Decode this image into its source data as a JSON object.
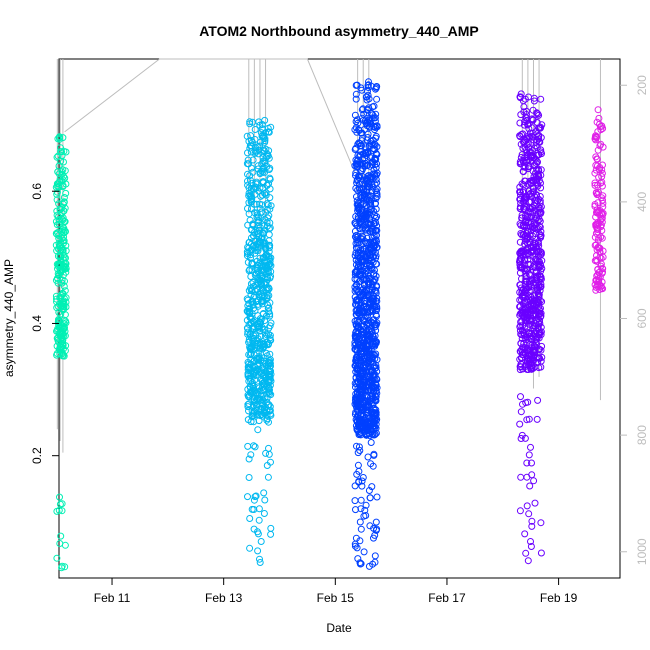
{
  "chart_data": {
    "type": "scatter",
    "title": "ATOM2 Northbound asymmetry_440_AMP",
    "xlabel": "Date",
    "ylabel": "asymmetry_440_AMP",
    "x_range_days": [
      10.05,
      20.1
    ],
    "ylim": [
      0.015,
      0.8
    ],
    "x_ticks": [
      {
        "label": "Feb 11",
        "day": 11
      },
      {
        "label": "Feb 13",
        "day": 13
      },
      {
        "label": "Feb 15",
        "day": 15
      },
      {
        "label": "Feb 17",
        "day": 17
      },
      {
        "label": "Feb 19",
        "day": 19
      }
    ],
    "y_ticks": [
      {
        "label": "0.2",
        "value": 0.2
      },
      {
        "label": "0.4",
        "value": 0.4
      },
      {
        "label": "0.6",
        "value": 0.6
      }
    ],
    "right_axis": {
      "ylim": [
        1045,
        155
      ],
      "color": "#bdbdbd",
      "ticks": [
        {
          "label": "200",
          "value": 200
        },
        {
          "label": "400",
          "value": 400
        },
        {
          "label": "600",
          "value": 600
        },
        {
          "label": "800",
          "value": 800
        },
        {
          "label": "1000",
          "value": 1000
        }
      ]
    },
    "series": [
      {
        "name": "Feb 10 cluster",
        "color": "#00f0b4",
        "x_start": 10.0,
        "x_end": 10.18,
        "y_dense": [
          0.35,
          0.69
        ],
        "y_sparse": [
          0.03,
          0.14
        ],
        "count": 260
      },
      {
        "name": "Feb 13 cluster",
        "color": "#00b8f0",
        "x_start": 13.42,
        "x_end": 13.85,
        "y_dense": [
          0.25,
          0.71
        ],
        "y_sparse": [
          0.035,
          0.24
        ],
        "count": 700
      },
      {
        "name": "Feb 15 cluster",
        "color": "#0040ff",
        "x_start": 15.35,
        "x_end": 15.75,
        "y_dense": [
          0.23,
          0.77
        ],
        "y_sparse": [
          0.03,
          0.22
        ],
        "count": 1100
      },
      {
        "name": "Feb 18 cluster",
        "color": "#6a00ff",
        "x_start": 18.3,
        "x_end": 18.7,
        "y_dense": [
          0.33,
          0.75
        ],
        "y_sparse": [
          0.04,
          0.29
        ],
        "count": 700
      },
      {
        "name": "Feb 19 cluster",
        "color": "#e020e8",
        "x_start": 19.65,
        "x_end": 19.8,
        "y_dense": [
          0.45,
          0.74
        ],
        "y_sparse": [
          0.45,
          0.5
        ],
        "count": 140
      }
    ],
    "gray_line": {
      "color": "#bdbdbd",
      "points": [
        {
          "day": 10.15,
          "value": 280
        },
        {
          "day": 11.85,
          "value": 155
        },
        {
          "day": 14.5,
          "value": 155
        },
        {
          "day": 15.35,
          "value": 350
        }
      ],
      "drops": [
        {
          "day": 10.02,
          "to": 790
        },
        {
          "day": 10.07,
          "to": 810
        },
        {
          "day": 10.12,
          "to": 830
        },
        {
          "day": 13.45,
          "to": 420
        },
        {
          "day": 13.55,
          "to": 480
        },
        {
          "day": 13.65,
          "to": 560
        },
        {
          "day": 13.75,
          "to": 440
        },
        {
          "day": 15.4,
          "to": 500
        },
        {
          "day": 15.5,
          "to": 560
        },
        {
          "day": 15.6,
          "to": 420
        },
        {
          "day": 18.35,
          "to": 600
        },
        {
          "day": 18.45,
          "to": 640
        },
        {
          "day": 18.55,
          "to": 720
        },
        {
          "day": 18.65,
          "to": 700
        },
        {
          "day": 19.75,
          "to": 740
        }
      ]
    }
  }
}
